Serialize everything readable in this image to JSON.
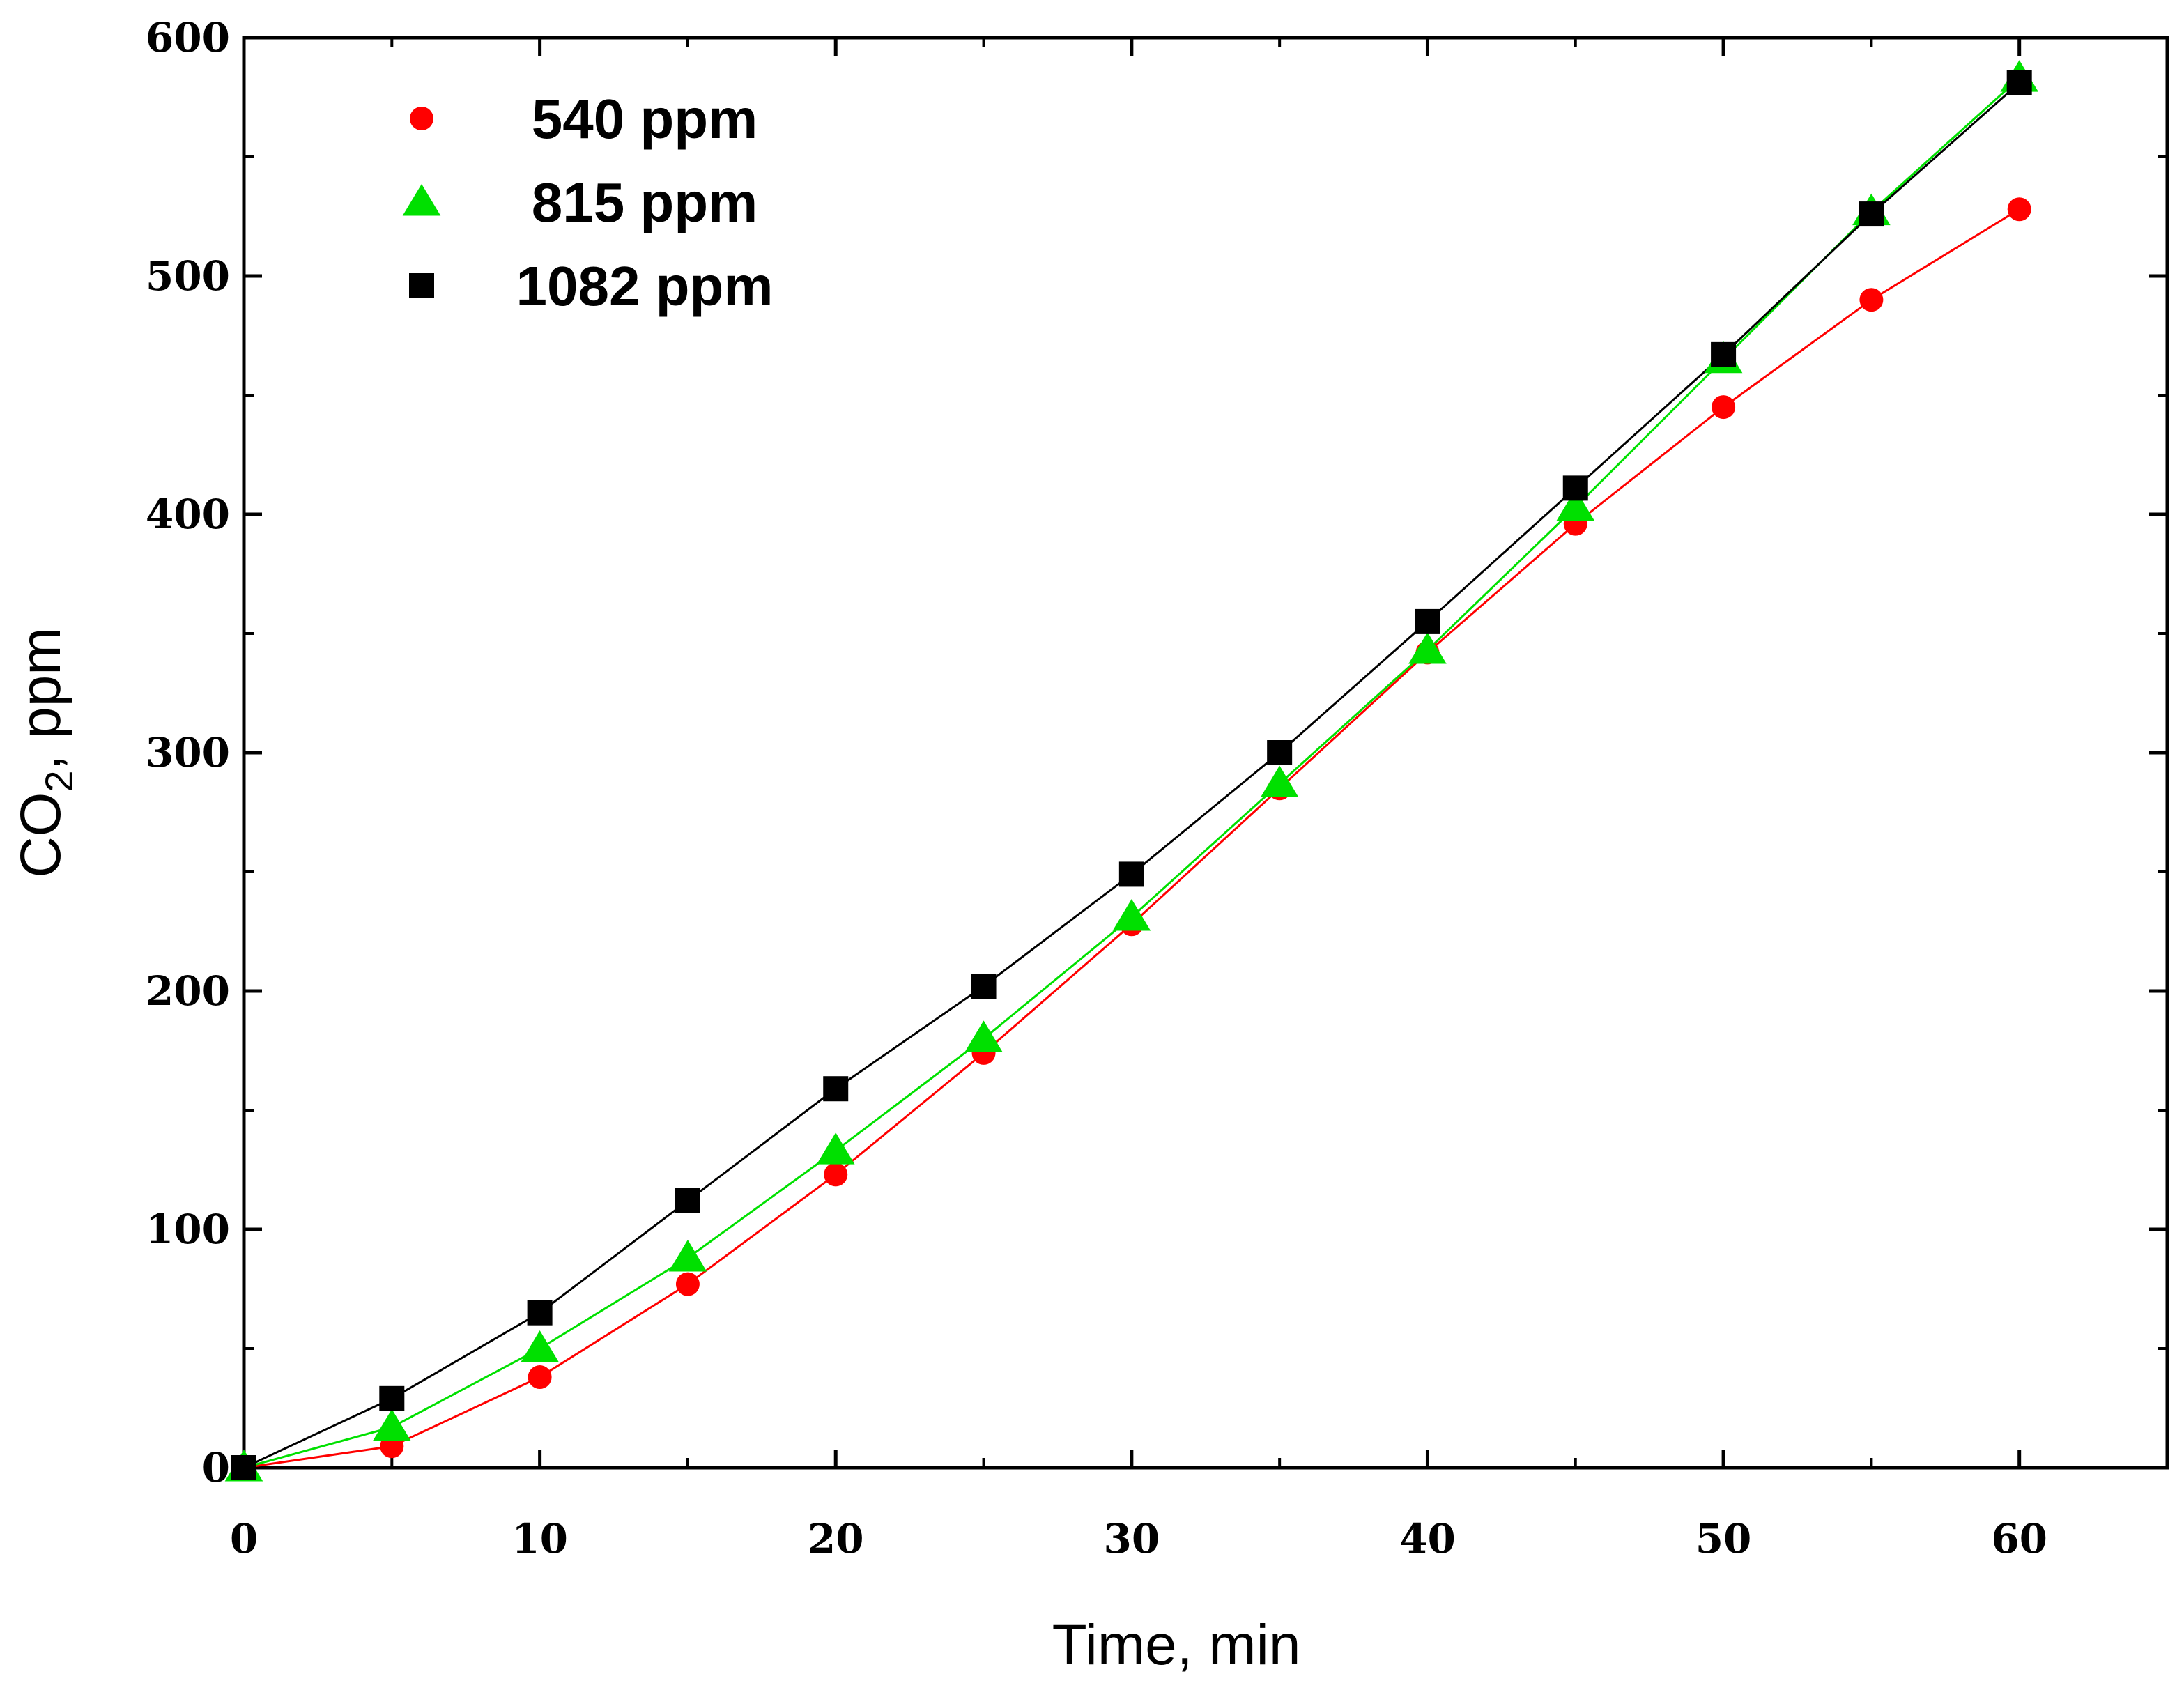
{
  "chart_data": {
    "type": "line",
    "title": "",
    "xlabel": "Time, min",
    "ylabel": "CO₂, ppm",
    "xlim": [
      0,
      65
    ],
    "ylim": [
      0,
      600
    ],
    "x_ticks": [
      0,
      10,
      20,
      30,
      40,
      50,
      60
    ],
    "y_ticks": [
      0,
      100,
      200,
      300,
      400,
      500,
      600
    ],
    "grid": false,
    "legend_position": "top-left",
    "x": [
      0,
      5,
      10,
      15,
      20,
      25,
      30,
      35,
      40,
      45,
      50,
      55,
      60
    ],
    "series": [
      {
        "name": "540 ppm",
        "marker": "circle",
        "color": "#ff0000",
        "values": [
          0,
          9,
          38,
          77,
          123,
          174,
          228,
          285,
          342,
          396,
          445,
          490,
          528
        ]
      },
      {
        "name": "815 ppm",
        "marker": "triangle",
        "color": "#00e000",
        "values": [
          0,
          17,
          50,
          88,
          133,
          180,
          231,
          287,
          343,
          403,
          465,
          527,
          583
        ]
      },
      {
        "name": "1082 ppm",
        "marker": "square",
        "color": "#000000",
        "values": [
          0,
          29,
          65,
          112,
          159,
          202,
          249,
          300,
          355,
          411,
          467,
          526,
          581
        ]
      }
    ]
  }
}
